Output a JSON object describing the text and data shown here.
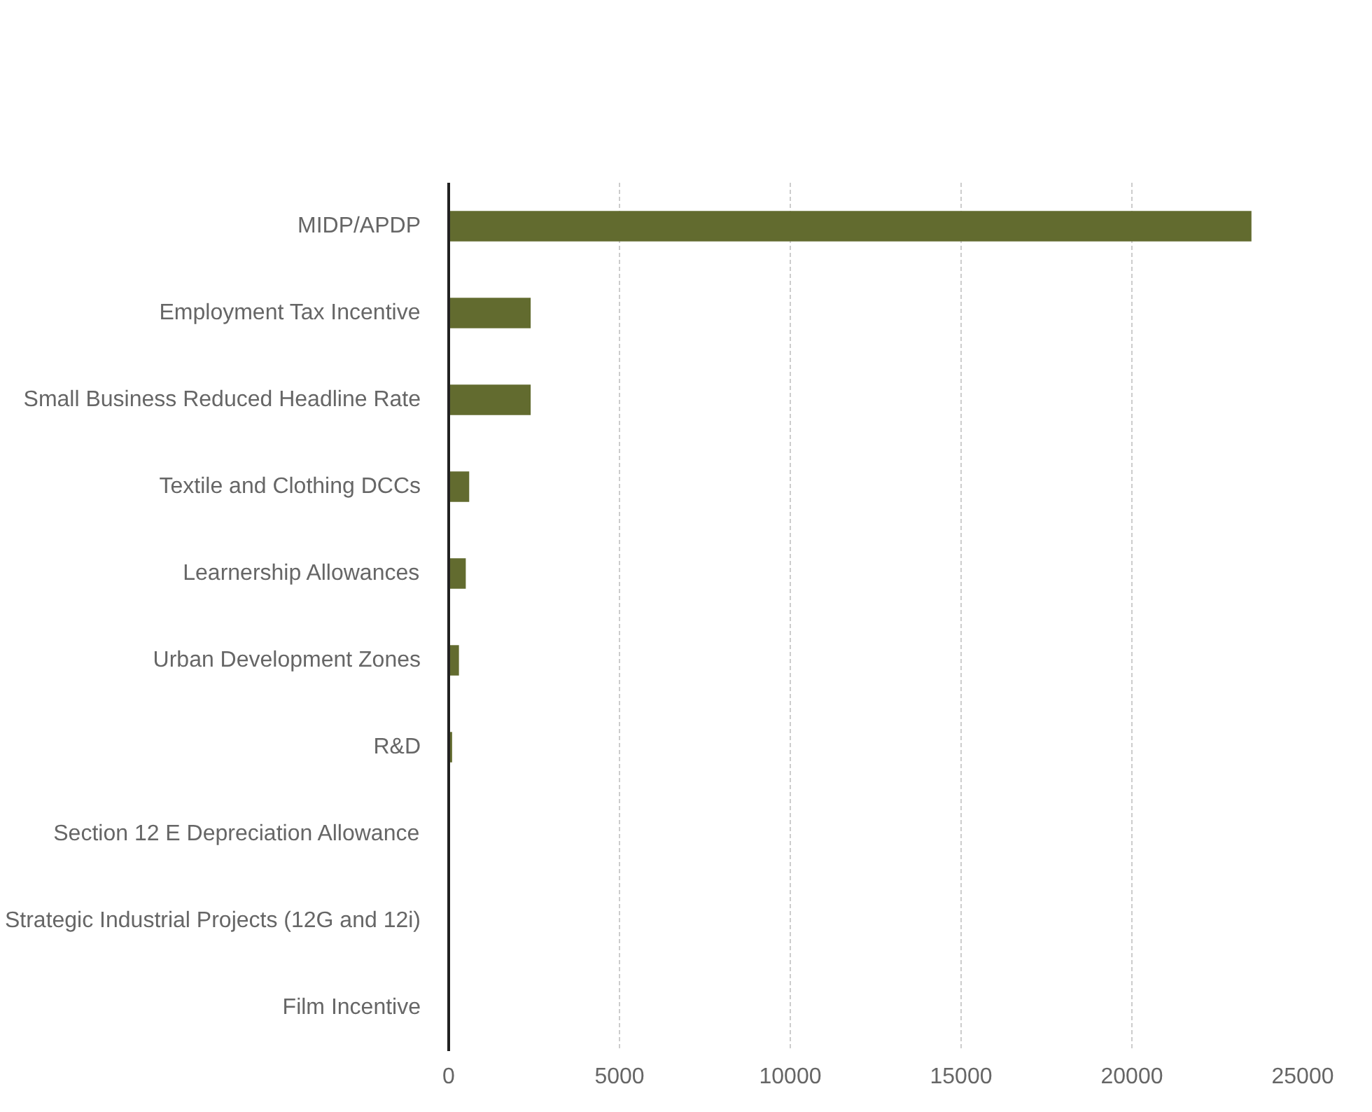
{
  "chart_data": {
    "type": "bar",
    "orientation": "horizontal",
    "categories": [
      "MIDP/APDP",
      "Employment Tax Incentive",
      "Small Business Reduced Headline Rate",
      "Textile and Clothing DCCs",
      "Learnership Allowances",
      "Urban Development Zones",
      "R&D",
      "Section 12 E Depreciation Allowance",
      "Strategic Industrial Projects (12G and 12i)",
      "Film Incentive"
    ],
    "values": [
      23500,
      2400,
      2400,
      600,
      500,
      300,
      100,
      0,
      0,
      0
    ],
    "color": "#626b2f",
    "xlim": [
      0,
      25000
    ],
    "xticks": [
      0,
      5000,
      10000,
      15000,
      20000,
      25000
    ],
    "grid": "x"
  }
}
